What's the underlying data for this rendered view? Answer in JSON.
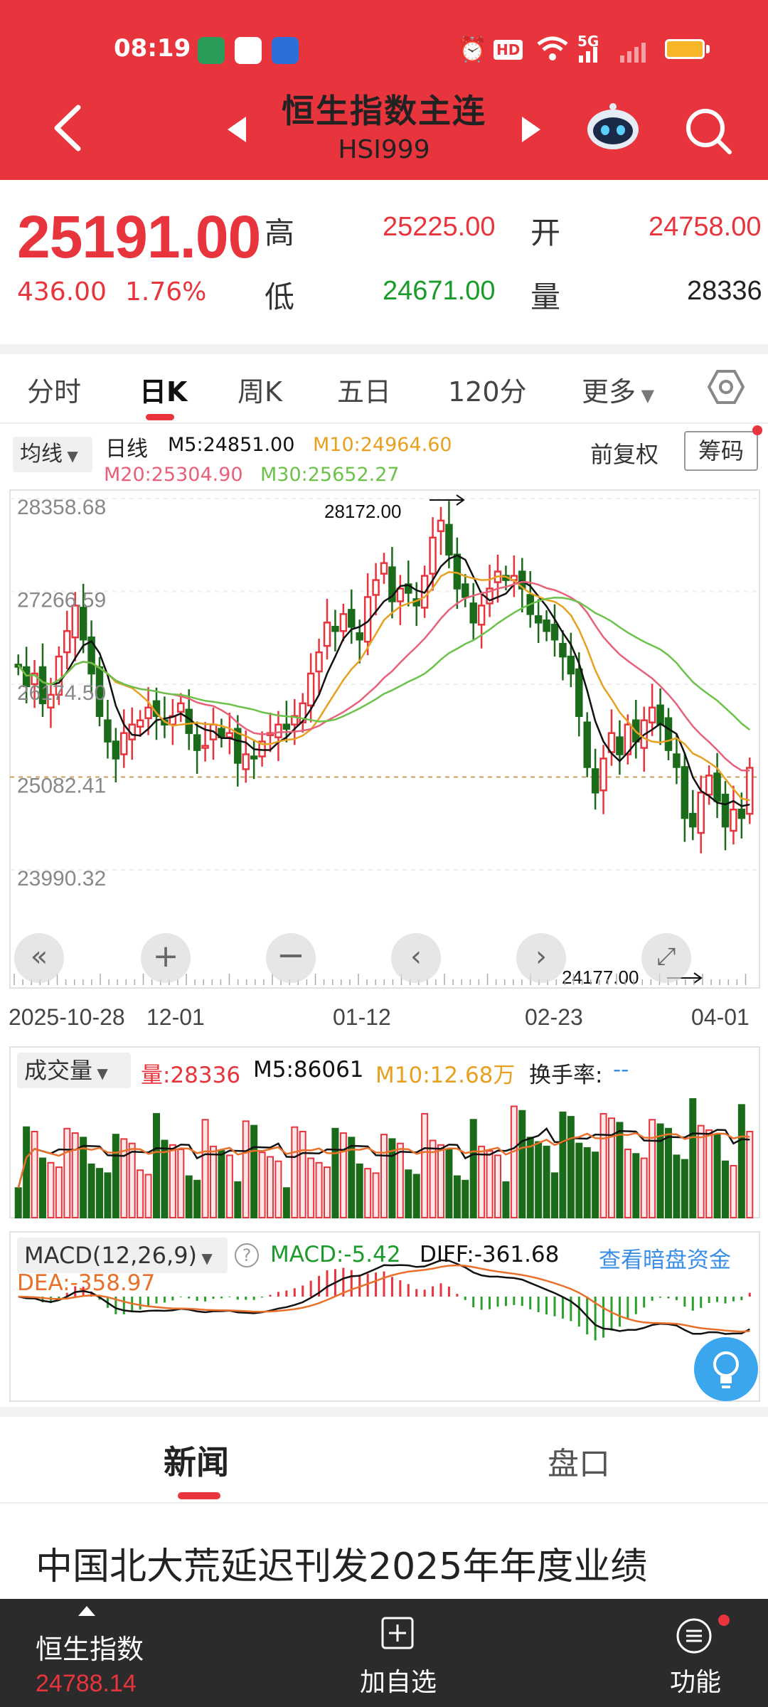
{
  "status_bar": {
    "time": "08:19",
    "network": "5G"
  },
  "header": {
    "title": "恒生指数主连",
    "code": "HSI999"
  },
  "quote": {
    "price": "25191.00",
    "change": "436.00",
    "change_pct": "1.76%",
    "high_label": "高",
    "high": "25225.00",
    "open_label": "开",
    "open": "24758.00",
    "low_label": "低",
    "low": "24671.00",
    "vol_label": "量",
    "vol": "28336"
  },
  "tabs": [
    "分时",
    "日K",
    "周K",
    "五日",
    "120分",
    "更多"
  ],
  "ma": {
    "select": "均线",
    "period": "日线",
    "m5": "M5:24851.00",
    "m10": "M10:24964.60",
    "m20": "M20:25304.90",
    "m30": "M30:25652.27",
    "adjust": "前复权",
    "chip": "筹码"
  },
  "chart_axis": {
    "y_labels": [
      "28358.68",
      "27266.59",
      "26174.50",
      "25082.41",
      "23990.32"
    ],
    "max_note": "28172.00",
    "min_note": "24177.00",
    "dates": [
      "2025-10-28",
      "12-01",
      "01-12",
      "02-23",
      "04-01"
    ]
  },
  "volume": {
    "select": "成交量",
    "vol": "量:28336",
    "m5": "M5:86061",
    "m10": "M10:12.68万",
    "turnover": "换手率:",
    "turnover_val": "--"
  },
  "macd": {
    "select": "MACD(12,26,9)",
    "macd": "MACD:-5.42",
    "diff": "DIFF:-361.68",
    "dea": "DEA:-358.97",
    "link": "查看暗盘资金"
  },
  "news": {
    "tab_news": "新闻",
    "tab_pankou": "盘口",
    "headline": "中国北大荒延迟刊发2025年年度业绩"
  },
  "bottom_nav": {
    "index_name": "恒生指数",
    "index_value": "24788.14",
    "add": "加自选",
    "func": "功能"
  },
  "colors": {
    "brand": "#e8343c",
    "up": "#e8343c",
    "down": "#1a6b1a",
    "m5": "#111111",
    "m10": "#e8a020",
    "m20": "#e8607a",
    "m30": "#6cc24a"
  },
  "chart_data": {
    "type": "candlestick",
    "title": "恒生指数主连 日K",
    "ylim": [
      23990.32,
      28358.68
    ],
    "annotations": {
      "max": 28172.0,
      "min": 24177.0
    },
    "y_ticks": [
      28358.68,
      27266.59,
      26174.5,
      25082.41,
      23990.32
    ],
    "x_ticks": [
      "2025-10-28",
      "12-01",
      "01-12",
      "02-23",
      "04-01"
    ],
    "close_series": [
      26400,
      26150,
      26300,
      25950,
      26050,
      26500,
      26800,
      27100,
      26700,
      26300,
      25800,
      25500,
      25300,
      25600,
      25700,
      25750,
      25900,
      25800,
      25700,
      25800,
      25950,
      25600,
      25400,
      25450,
      25700,
      25550,
      25600,
      25250,
      25350,
      25300,
      25500,
      25600,
      25700,
      25650,
      25800,
      25950,
      26300,
      26550,
      26900,
      26800,
      27000,
      26850,
      26700,
      27200,
      27400,
      27600,
      27150,
      27300,
      27250,
      27100,
      27450,
      27900,
      28100,
      27700,
      27300,
      27200,
      26900,
      27100,
      27300,
      27500,
      27400,
      27450,
      27300,
      27000,
      26900,
      26800,
      26700,
      26500,
      26300,
      25800,
      25200,
      24900,
      25300,
      25600,
      25350,
      25700,
      25500,
      25750,
      25900,
      25700,
      25400,
      25200,
      24600,
      24500,
      24900,
      25100,
      24800,
      24500,
      24700,
      24600,
      25191
    ],
    "ma_series": [
      {
        "name": "M5"
      },
      {
        "name": "M10"
      },
      {
        "name": "M20"
      },
      {
        "name": "M30"
      }
    ],
    "volume_ma": {
      "M5": 86061,
      "M10": "12.68万"
    },
    "macd_values": {
      "MACD": -5.42,
      "DIFF": -361.68,
      "DEA": -358.97
    }
  }
}
